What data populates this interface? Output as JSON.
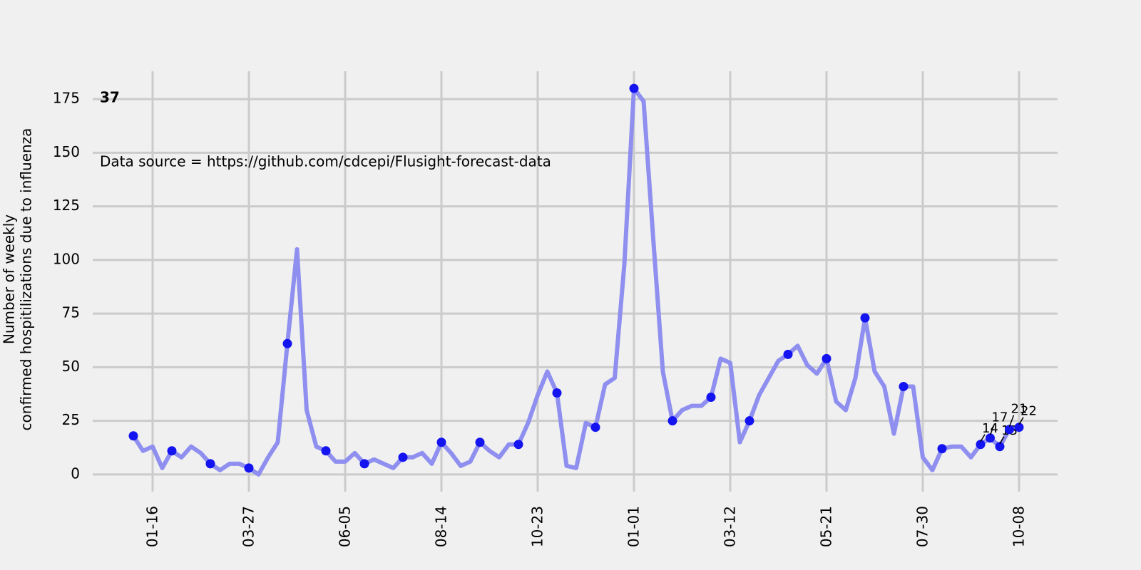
{
  "chart_data": {
    "type": "line",
    "title": "37",
    "annotations": [
      "Data source = https://github.com/cdcepi/Flusight-forecast-data"
    ],
    "ylabel": [
      "Number of weekly",
      "confirmed hospitilizations due to influenza"
    ],
    "categories": [
      null,
      null,
      "01-16",
      null,
      null,
      null,
      null,
      null,
      null,
      null,
      null,
      null,
      "03-27",
      null,
      null,
      null,
      null,
      null,
      null,
      null,
      null,
      null,
      "06-05",
      null,
      null,
      null,
      null,
      null,
      null,
      null,
      null,
      null,
      "08-14",
      null,
      null,
      null,
      null,
      null,
      null,
      null,
      null,
      null,
      "10-23",
      null,
      null,
      null,
      null,
      null,
      null,
      null,
      null,
      null,
      "01-01",
      null,
      null,
      null,
      null,
      null,
      null,
      null,
      null,
      null,
      "03-12",
      null,
      null,
      null,
      null,
      null,
      null,
      null,
      null,
      null,
      "05-21",
      null,
      null,
      null,
      null,
      null,
      null,
      null,
      null,
      null,
      "07-30",
      null,
      null,
      null,
      null,
      null,
      null,
      null,
      null,
      null,
      "10-08"
    ],
    "series": [
      {
        "mode": "line",
        "color": "#8f8ff0",
        "values": [
          18,
          11,
          13,
          3,
          11,
          8,
          13,
          10,
          5,
          2,
          5,
          5,
          3,
          0,
          8,
          15,
          61,
          105,
          30,
          13,
          11,
          6,
          6,
          10,
          5,
          7,
          5,
          3,
          8,
          8,
          10,
          5,
          15,
          10,
          4,
          6,
          15,
          11,
          8,
          14,
          14,
          24,
          37,
          48,
          38,
          4,
          3,
          24,
          22,
          42,
          45,
          98,
          180,
          174,
          110,
          48,
          25,
          30,
          32,
          32,
          36,
          54,
          52,
          15,
          25,
          37,
          45,
          53,
          56,
          60,
          51,
          47,
          54,
          34,
          30,
          45,
          73,
          48,
          41,
          19,
          41,
          41,
          8,
          2,
          12,
          13,
          13,
          8,
          14,
          17,
          13,
          21,
          22
        ]
      },
      {
        "mode": "markers",
        "color": "#1414f0",
        "values": [
          18,
          null,
          null,
          null,
          11,
          null,
          null,
          null,
          5,
          null,
          null,
          null,
          3,
          null,
          null,
          null,
          61,
          null,
          null,
          null,
          11,
          null,
          null,
          null,
          5,
          null,
          null,
          null,
          8,
          null,
          null,
          null,
          15,
          null,
          null,
          null,
          15,
          null,
          null,
          null,
          14,
          null,
          null,
          null,
          38,
          null,
          null,
          null,
          22,
          null,
          null,
          null,
          180,
          null,
          null,
          null,
          25,
          null,
          null,
          null,
          36,
          null,
          null,
          null,
          25,
          null,
          null,
          null,
          56,
          null,
          null,
          null,
          54,
          null,
          null,
          null,
          73,
          null,
          null,
          null,
          41,
          null,
          null,
          null,
          12,
          null,
          null,
          null,
          14,
          17,
          13,
          21,
          22
        ],
        "value_labels": [
          null,
          null,
          null,
          null,
          null,
          null,
          null,
          null,
          null,
          null,
          null,
          null,
          null,
          null,
          null,
          null,
          null,
          null,
          null,
          null,
          null,
          null,
          null,
          null,
          null,
          null,
          null,
          null,
          null,
          null,
          null,
          null,
          null,
          null,
          null,
          null,
          null,
          null,
          null,
          null,
          null,
          null,
          null,
          null,
          null,
          null,
          null,
          null,
          null,
          null,
          null,
          null,
          null,
          null,
          null,
          null,
          null,
          null,
          null,
          null,
          null,
          null,
          null,
          null,
          null,
          null,
          null,
          null,
          null,
          null,
          null,
          null,
          null,
          null,
          null,
          null,
          null,
          null,
          null,
          null,
          null,
          null,
          null,
          null,
          null,
          null,
          null,
          null,
          "14",
          "17",
          "13",
          "21",
          "22"
        ]
      }
    ],
    "ylim": [
      -8,
      188
    ],
    "yticks": [
      0,
      25,
      50,
      75,
      100,
      125,
      150,
      175
    ],
    "grid": true
  }
}
